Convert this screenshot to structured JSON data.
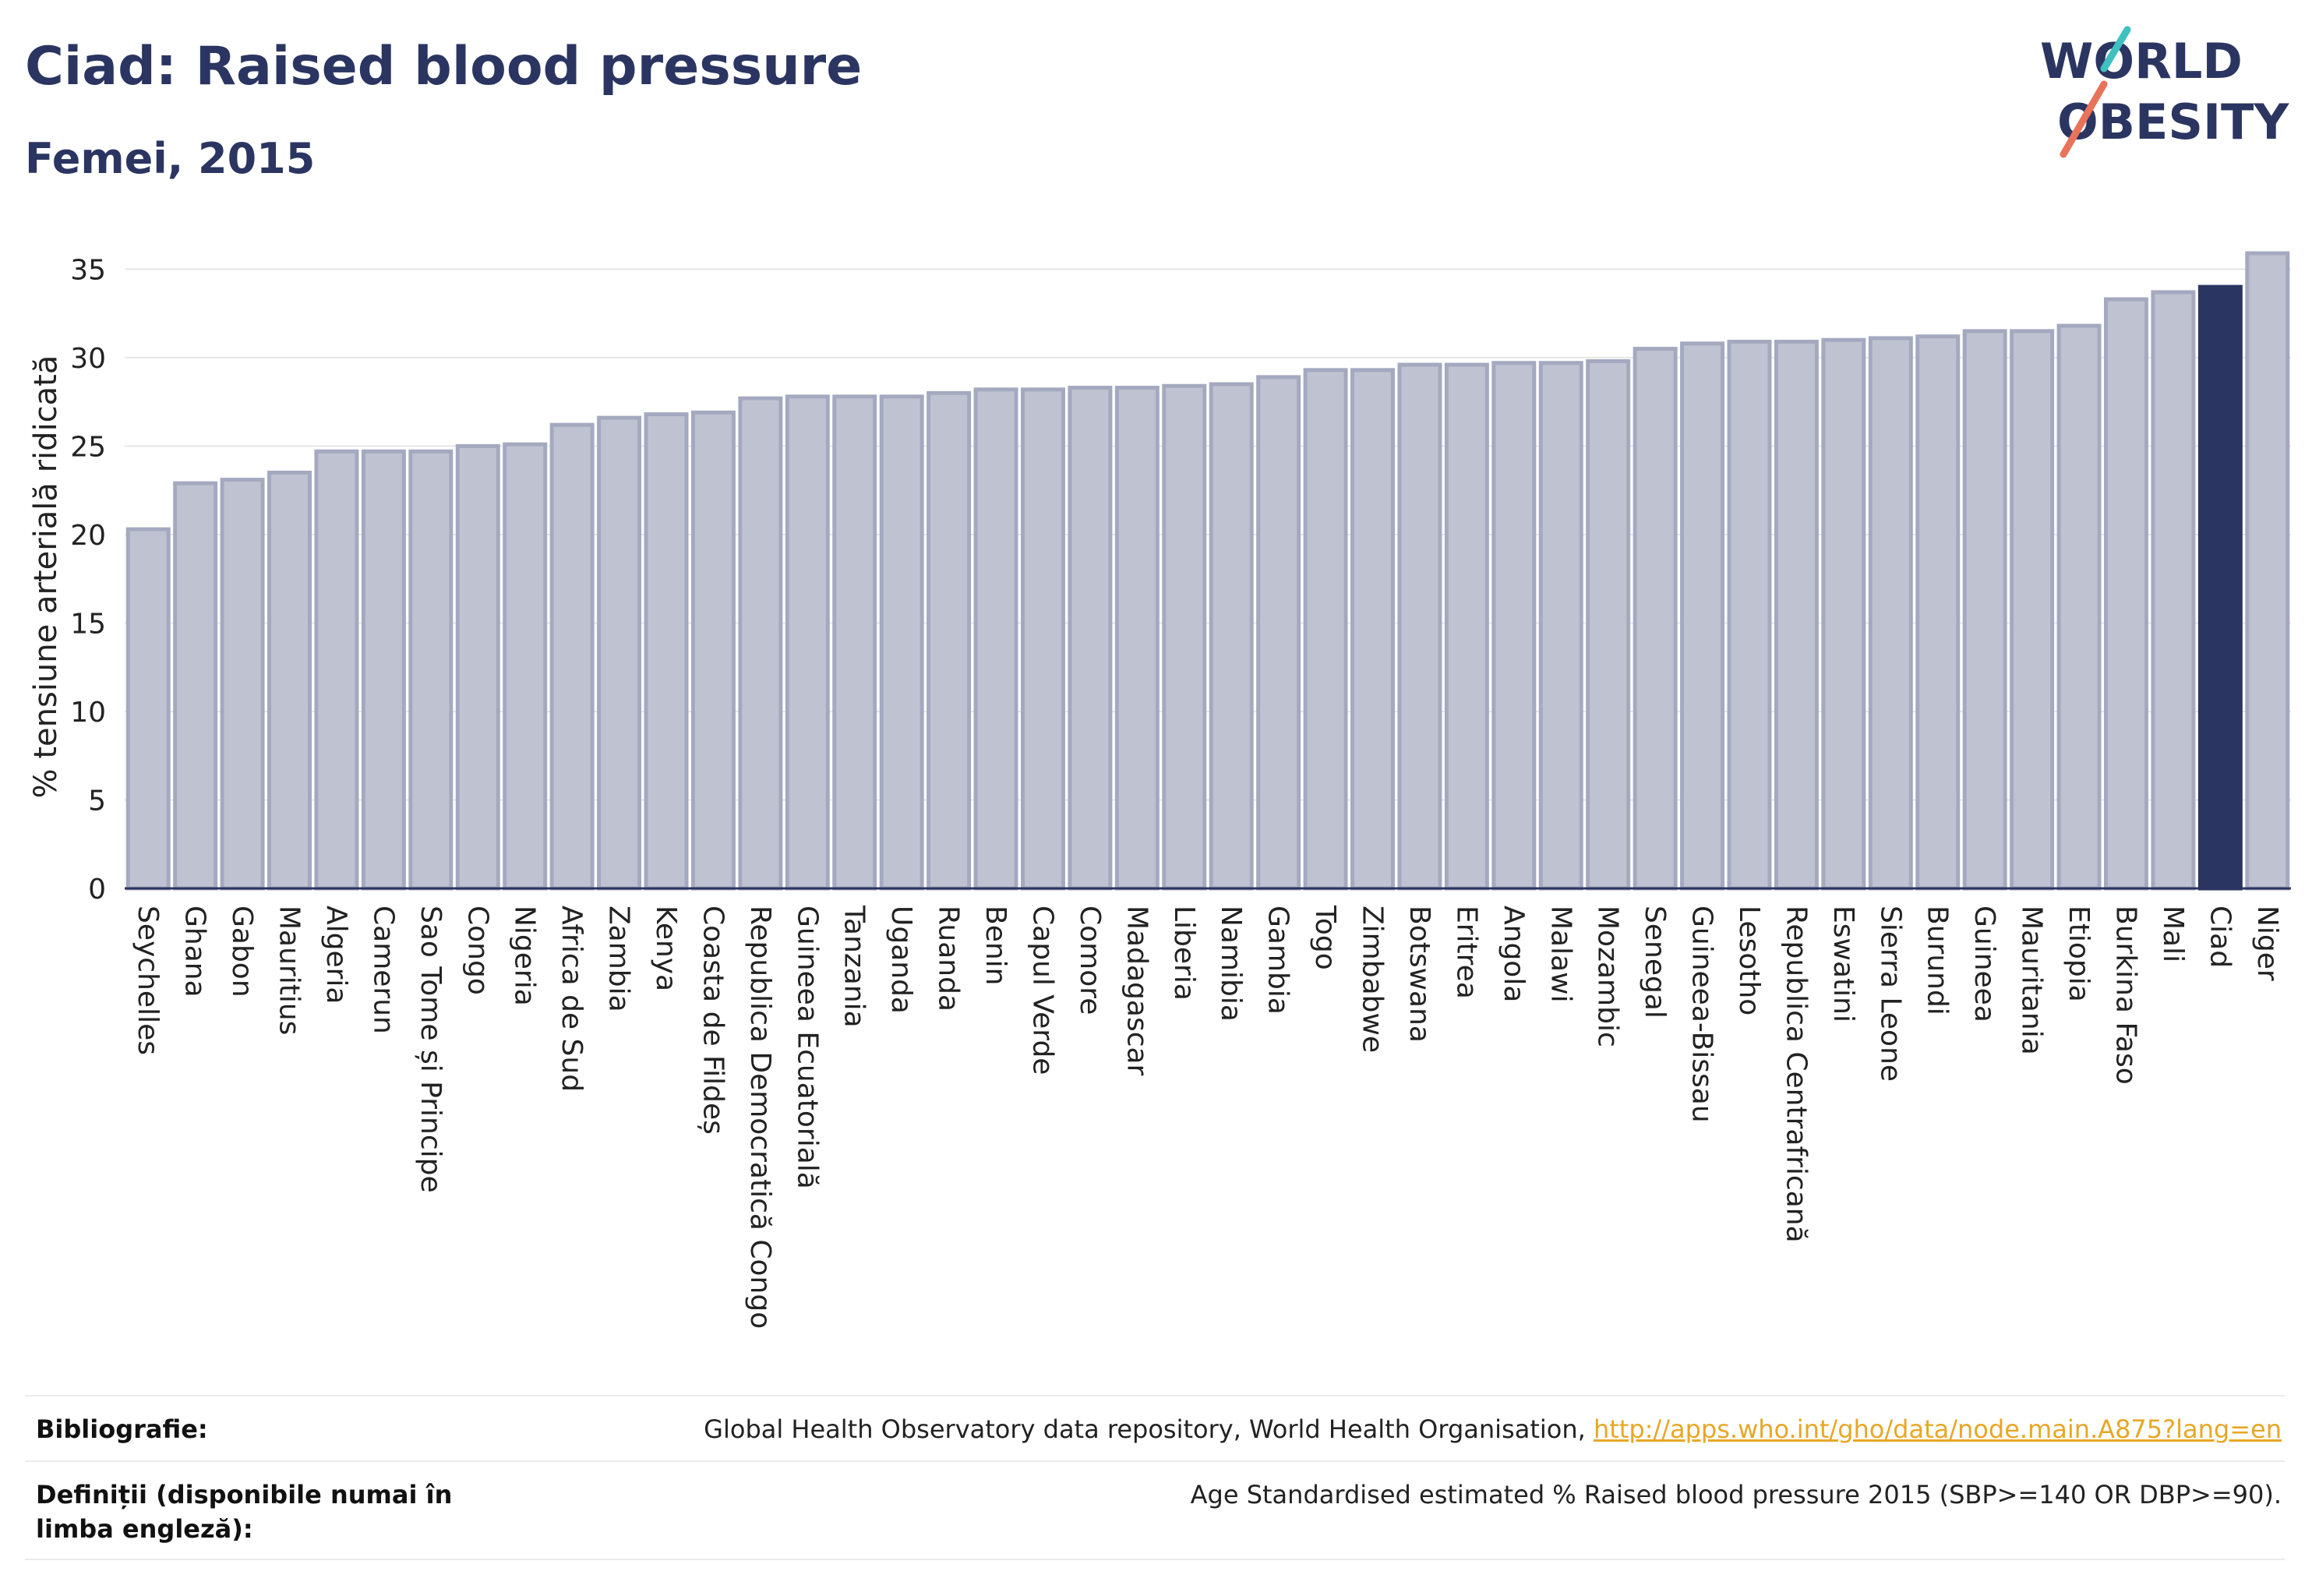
{
  "header": {
    "title": "Ciad: Raised blood pressure",
    "subtitle": "Femei, 2015"
  },
  "logo": {
    "line1": "WORLD",
    "line2": "OBESITY"
  },
  "chart_data": {
    "type": "bar",
    "ylabel": "% tensiune arterială ridicată",
    "ylim": [
      0,
      37
    ],
    "yticks": [
      0,
      5,
      10,
      15,
      20,
      25,
      30,
      35
    ],
    "grid": true,
    "highlight": "Ciad",
    "colors": {
      "bar": "#bfc3d1",
      "bar_edge": "#a4a9c0",
      "highlight": "#2b3561"
    },
    "categories": [
      "Seychelles",
      "Ghana",
      "Gabon",
      "Mauritius",
      "Algeria",
      "Camerun",
      "Sao Tome și Principe",
      "Congo",
      "Nigeria",
      "Africa de Sud",
      "Zambia",
      "Kenya",
      "Coasta de Fildeș",
      "Republica Democratică Congo",
      "Guineea Ecuatorială",
      "Tanzania",
      "Uganda",
      "Ruanda",
      "Benin",
      "Capul Verde",
      "Comore",
      "Madagascar",
      "Liberia",
      "Namibia",
      "Gambia",
      "Togo",
      "Zimbabwe",
      "Botswana",
      "Eritrea",
      "Angola",
      "Malawi",
      "Mozambic",
      "Senegal",
      "Guineea-Bissau",
      "Lesotho",
      "Republica Centrafricană",
      "Eswatini",
      "Sierra Leone",
      "Burundi",
      "Guineea",
      "Mauritania",
      "Etiopia",
      "Burkina Faso",
      "Mali",
      "Ciad",
      "Niger"
    ],
    "values": [
      20.3,
      22.9,
      23.1,
      23.5,
      24.7,
      24.7,
      24.7,
      25.0,
      25.1,
      26.2,
      26.6,
      26.8,
      26.9,
      27.7,
      27.8,
      27.8,
      27.8,
      28.0,
      28.2,
      28.2,
      28.3,
      28.3,
      28.4,
      28.5,
      28.9,
      29.3,
      29.3,
      29.6,
      29.6,
      29.7,
      29.7,
      29.8,
      30.5,
      30.8,
      30.9,
      30.9,
      31.0,
      31.1,
      31.2,
      31.5,
      31.5,
      31.8,
      33.3,
      33.7,
      34.0,
      35.9
    ]
  },
  "footer": {
    "bibliography_label": "Bibliografie:",
    "bibliography_text": "Global Health Observatory data repository, World Health Organisation, ",
    "bibliography_link": "http://apps.who.int/gho/data/node.main.A875?lang=en",
    "definitions_label": "Definiții (disponibile numai în limba engleză):",
    "definitions_text": "Age Standardised estimated % Raised blood pressure 2015 (SBP>=140 OR DBP>=90)."
  }
}
